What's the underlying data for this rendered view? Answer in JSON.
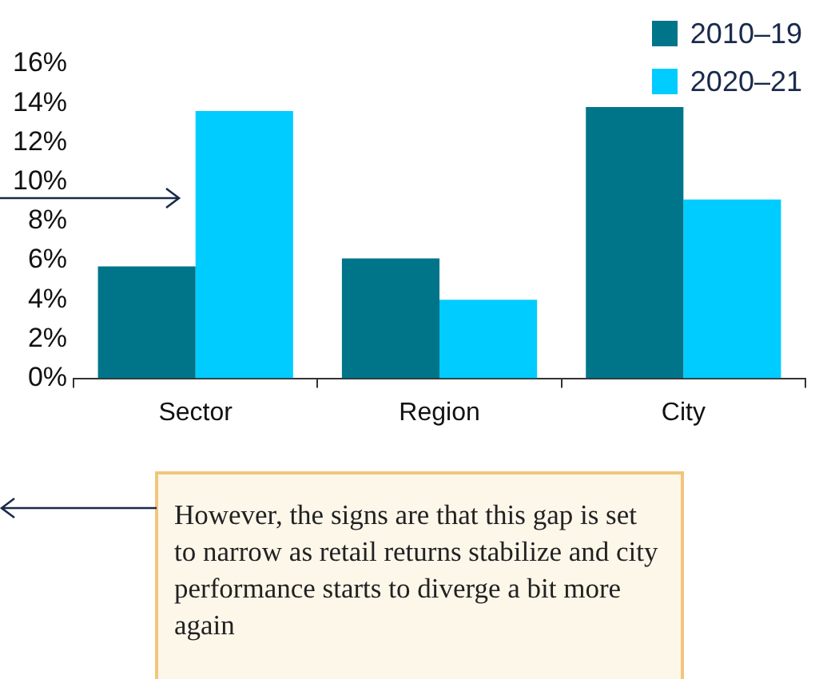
{
  "chart_data": {
    "type": "bar",
    "categories": [
      "Sector",
      "Region",
      "City"
    ],
    "series": [
      {
        "name": "2010–19",
        "color": "#00758a",
        "values": [
          5.7,
          6.1,
          13.8
        ]
      },
      {
        "name": "2020–21",
        "color": "#00ccff",
        "values": [
          13.6,
          4.0,
          9.1
        ]
      }
    ],
    "ylim": [
      0,
      16
    ],
    "yticks": [
      {
        "value": 0,
        "label": "0%"
      },
      {
        "value": 2,
        "label": "2%"
      },
      {
        "value": 4,
        "label": "4%"
      },
      {
        "value": 6,
        "label": "6%"
      },
      {
        "value": 8,
        "label": "8%"
      },
      {
        "value": 10,
        "label": "10%"
      },
      {
        "value": 12,
        "label": "12%"
      },
      {
        "value": 14,
        "label": "14%"
      },
      {
        "value": 16,
        "label": "16%"
      }
    ],
    "grid": false,
    "legend": "top right",
    "annotations": [
      "However, the signs are that this gap is set to narrow as retail returns stabilize and city performance starts to diverge a bit more again"
    ]
  }
}
